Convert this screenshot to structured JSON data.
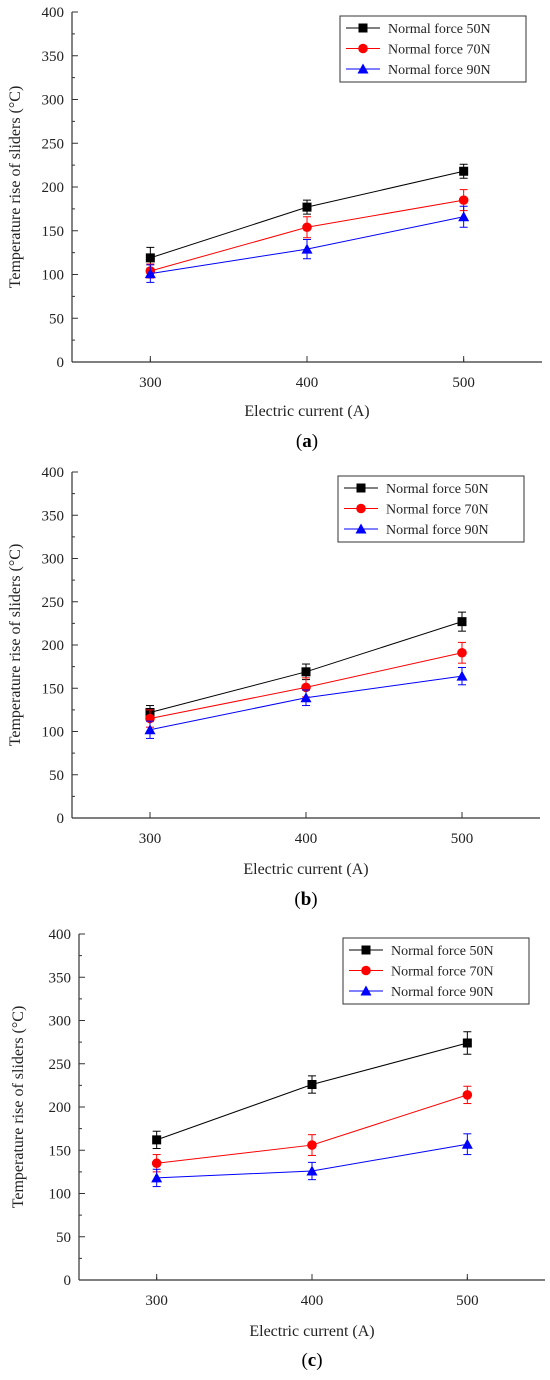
{
  "chart_data": [
    {
      "type": "line",
      "panel_label": "a",
      "xlabel": "Electric current (A)",
      "ylabel": "Temperature rise of sliders (°C)",
      "x": [
        300,
        400,
        500
      ],
      "xlim": [
        250,
        550
      ],
      "ylim": [
        0,
        400
      ],
      "xticks": [
        "300",
        "400",
        "500"
      ],
      "yticks": [
        "0",
        "50",
        "100",
        "150",
        "200",
        "250",
        "300",
        "350",
        "400"
      ],
      "legend_position": "top-right",
      "grid": false,
      "series": [
        {
          "name": "Normal force 50N",
          "color": "#000000",
          "marker": "square",
          "values": [
            119,
            177,
            218
          ],
          "errors": [
            12,
            8,
            8
          ]
        },
        {
          "name": "Normal force 70N",
          "color": "#ff0000",
          "marker": "circle",
          "values": [
            104,
            154,
            185
          ],
          "errors": [
            8,
            12,
            12
          ]
        },
        {
          "name": "Normal force 90N",
          "color": "#0000ff",
          "marker": "triangle",
          "values": [
            101,
            129,
            166
          ],
          "errors": [
            10,
            11,
            12
          ]
        }
      ]
    },
    {
      "type": "line",
      "panel_label": "b",
      "xlabel": "Electric current (A)",
      "ylabel": "Temperature rise of sliders (°C)",
      "x": [
        300,
        400,
        500
      ],
      "xlim": [
        250,
        550
      ],
      "ylim": [
        0,
        400
      ],
      "xticks": [
        "300",
        "400",
        "500"
      ],
      "yticks": [
        "0",
        "50",
        "100",
        "150",
        "200",
        "250",
        "300",
        "350",
        "400"
      ],
      "legend_position": "top-right",
      "grid": false,
      "series": [
        {
          "name": "Normal force 50N",
          "color": "#000000",
          "marker": "square",
          "values": [
            122,
            169,
            227
          ],
          "errors": [
            8,
            9,
            11
          ]
        },
        {
          "name": "Normal force 70N",
          "color": "#ff0000",
          "marker": "circle",
          "values": [
            115,
            151,
            191
          ],
          "errors": [
            10,
            11,
            12
          ]
        },
        {
          "name": "Normal force 90N",
          "color": "#0000ff",
          "marker": "triangle",
          "values": [
            102,
            139,
            164
          ],
          "errors": [
            10,
            9,
            10
          ]
        }
      ]
    },
    {
      "type": "line",
      "panel_label": "c",
      "xlabel": "Electric current (A)",
      "ylabel": "Temperature rise of sliders (°C)",
      "x": [
        300,
        400,
        500
      ],
      "xlim": [
        250,
        550
      ],
      "ylim": [
        0,
        400
      ],
      "xticks": [
        "300",
        "400",
        "500"
      ],
      "yticks": [
        "0",
        "50",
        "100",
        "150",
        "200",
        "250",
        "300",
        "350",
        "400"
      ],
      "legend_position": "top-right",
      "grid": false,
      "series": [
        {
          "name": "Normal force 50N",
          "color": "#000000",
          "marker": "square",
          "values": [
            162,
            226,
            274
          ],
          "errors": [
            10,
            10,
            13
          ]
        },
        {
          "name": "Normal force 70N",
          "color": "#ff0000",
          "marker": "circle",
          "values": [
            135,
            156,
            214
          ],
          "errors": [
            10,
            12,
            10
          ]
        },
        {
          "name": "Normal force 90N",
          "color": "#0000ff",
          "marker": "triangle",
          "values": [
            118,
            126,
            157
          ],
          "errors": [
            10,
            10,
            12
          ]
        }
      ]
    }
  ]
}
